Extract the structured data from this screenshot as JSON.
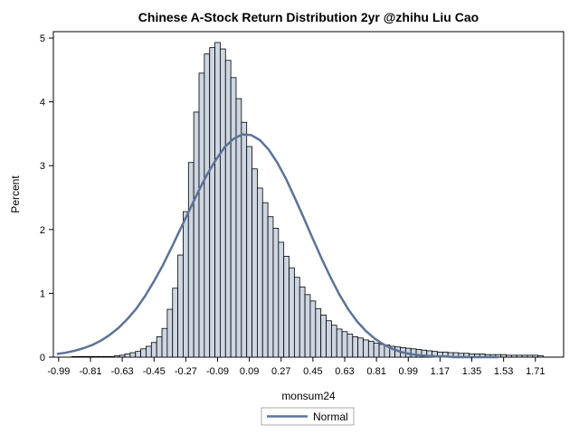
{
  "chart_data": {
    "type": "bar",
    "title": "Chinese A-Stock Return Distribution 2yr @zhihu Liu Cao",
    "xlabel": "monsum24",
    "ylabel": "Percent",
    "xlim": [
      -1.02,
      1.87
    ],
    "ylim": [
      0,
      5.1
    ],
    "x_ticks": [
      -0.99,
      -0.81,
      -0.63,
      -0.45,
      -0.27,
      -0.09,
      0.09,
      0.27,
      0.45,
      0.63,
      0.81,
      0.99,
      1.17,
      1.35,
      1.53,
      1.71
    ],
    "x_tick_labels": [
      "-0.99",
      "-0.81",
      "-0.63",
      "-0.45",
      "-0.27",
      "-0.09",
      "0.09",
      "0.27",
      "0.45",
      "0.63",
      "0.81",
      "0.99",
      "1.17",
      "1.35",
      "1.53",
      "1.71"
    ],
    "y_ticks": [
      0,
      1,
      2,
      3,
      4,
      5
    ],
    "y_tick_labels": [
      "0",
      "1",
      "2",
      "3",
      "4",
      "5"
    ],
    "histogram": {
      "bin_width": 0.03,
      "bin_start": -0.915,
      "percent": [
        0.01,
        0.01,
        0.01,
        0.01,
        0.01,
        0.01,
        0.01,
        0.01,
        0.02,
        0.03,
        0.05,
        0.07,
        0.09,
        0.13,
        0.17,
        0.23,
        0.32,
        0.45,
        0.75,
        1.08,
        1.6,
        2.28,
        3.05,
        3.84,
        4.45,
        4.75,
        4.85,
        4.93,
        4.83,
        4.65,
        4.38,
        4.05,
        3.68,
        3.3,
        2.95,
        2.65,
        2.42,
        2.2,
        2.02,
        1.8,
        1.58,
        1.4,
        1.25,
        1.1,
        0.98,
        0.88,
        0.76,
        0.66,
        0.57,
        0.5,
        0.44,
        0.4,
        0.36,
        0.32,
        0.3,
        0.27,
        0.25,
        0.22,
        0.2,
        0.19,
        0.17,
        0.16,
        0.15,
        0.14,
        0.13,
        0.12,
        0.11,
        0.1,
        0.09,
        0.08,
        0.08,
        0.07,
        0.07,
        0.06,
        0.06,
        0.05,
        0.05,
        0.05,
        0.04,
        0.04,
        0.04,
        0.04,
        0.03,
        0.03,
        0.03,
        0.03,
        0.03,
        0.03,
        0.02
      ],
      "fill": "#cdd6e2",
      "stroke": "#000000"
    },
    "series": [
      {
        "name": "Normal",
        "kind": "line",
        "color": "#5b7396",
        "x": [
          -1.0,
          -0.95,
          -0.9,
          -0.85,
          -0.8,
          -0.75,
          -0.7,
          -0.65,
          -0.6,
          -0.55,
          -0.5,
          -0.45,
          -0.4,
          -0.35,
          -0.3,
          -0.25,
          -0.2,
          -0.15,
          -0.1,
          -0.05,
          0.0,
          0.05,
          0.1,
          0.15,
          0.2,
          0.25,
          0.3,
          0.35,
          0.4,
          0.45,
          0.5,
          0.55,
          0.6,
          0.65,
          0.7,
          0.75,
          0.8,
          0.85,
          0.9,
          0.95,
          1.0,
          1.05,
          1.1,
          1.15,
          1.2,
          1.25,
          1.3,
          1.35,
          1.4,
          1.45,
          1.5
        ],
        "y": [
          0.05,
          0.07,
          0.1,
          0.14,
          0.19,
          0.26,
          0.35,
          0.46,
          0.6,
          0.76,
          0.96,
          1.19,
          1.44,
          1.72,
          2.01,
          2.3,
          2.59,
          2.86,
          3.09,
          3.29,
          3.42,
          3.49,
          3.48,
          3.4,
          3.25,
          3.04,
          2.78,
          2.48,
          2.17,
          1.85,
          1.54,
          1.25,
          0.98,
          0.75,
          0.56,
          0.41,
          0.29,
          0.2,
          0.13,
          0.08,
          0.05,
          0.03,
          0.02,
          0.01,
          0.01,
          0.0,
          0.0,
          0.0,
          0.0,
          0.0,
          0.0
        ]
      }
    ],
    "legend": {
      "position": "bottom-center",
      "entries": [
        "Normal"
      ]
    },
    "grid": false
  }
}
